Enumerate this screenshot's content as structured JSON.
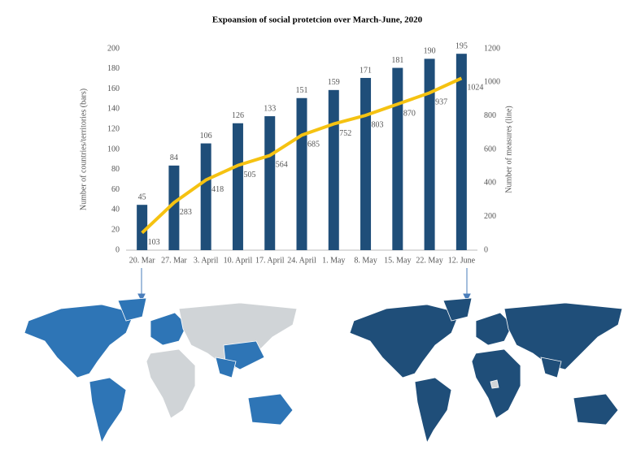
{
  "chart_data": {
    "type": "bar",
    "title": "Expoansion of social protetcion over March-June, 2020",
    "categories": [
      "20. Mar",
      "27. Mar",
      "3. April",
      "10. April",
      "17. April",
      "24. April",
      "1. May",
      "8. May",
      "15. May",
      "22. May",
      "12. June"
    ],
    "series": [
      {
        "type": "bar",
        "color": "#1f4e79",
        "values": [
          45,
          84,
          106,
          126,
          133,
          151,
          159,
          171,
          181,
          190,
          195
        ]
      },
      {
        "type": "line",
        "axis": "y2",
        "color": "#f5c211",
        "values": [
          103,
          283,
          418,
          505,
          564,
          685,
          752,
          803,
          870,
          937,
          1024
        ]
      }
    ],
    "ylabel": "Number of countries/territories (bars)",
    "y2label": "Number of measures (line)",
    "ylim": [
      0,
      200
    ],
    "yticks": [
      0,
      20,
      40,
      60,
      80,
      100,
      120,
      140,
      160,
      180,
      200
    ],
    "y2lim": [
      0,
      1200
    ],
    "y2ticks": [
      0,
      200,
      400,
      600,
      800,
      1000,
      1200
    ],
    "grid": false
  }
}
